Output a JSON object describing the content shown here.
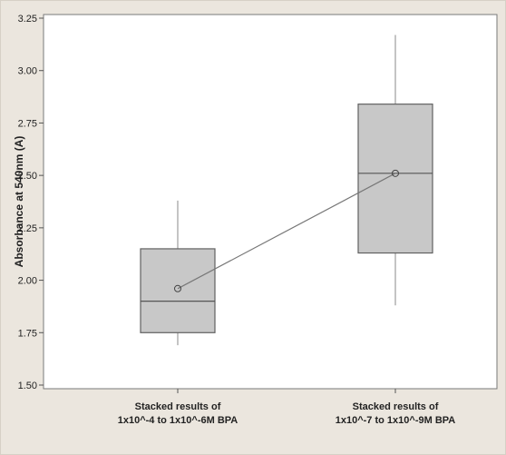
{
  "chart_data": {
    "type": "box",
    "ylabel": "Absorbance at 540nm (A)",
    "ylim": [
      1.5,
      3.25
    ],
    "yticks": [
      "1.50",
      "1.75",
      "2.00",
      "2.25",
      "2.50",
      "2.75",
      "3.00",
      "3.25"
    ],
    "categories": [
      [
        "Stacked results of",
        "1x10^-4 to 1x10^-6M BPA"
      ],
      [
        "Stacked results of",
        "1x10^-7 to 1x10^-9M BPA"
      ]
    ],
    "boxes": [
      {
        "whisker_low": 1.69,
        "q1": 1.75,
        "median": 1.9,
        "q3": 2.15,
        "whisker_high": 2.38,
        "mean": 1.96
      },
      {
        "whisker_low": 1.88,
        "q1": 2.13,
        "median": 2.51,
        "q3": 2.84,
        "whisker_high": 3.17,
        "mean": 2.51
      }
    ],
    "mean_connect_line": true,
    "grid": false,
    "colors": {
      "box_fill": "#c8c8c8",
      "box_stroke": "#606060",
      "plot_bg": "#ffffff",
      "outer_bg": "#ebe6de"
    }
  }
}
